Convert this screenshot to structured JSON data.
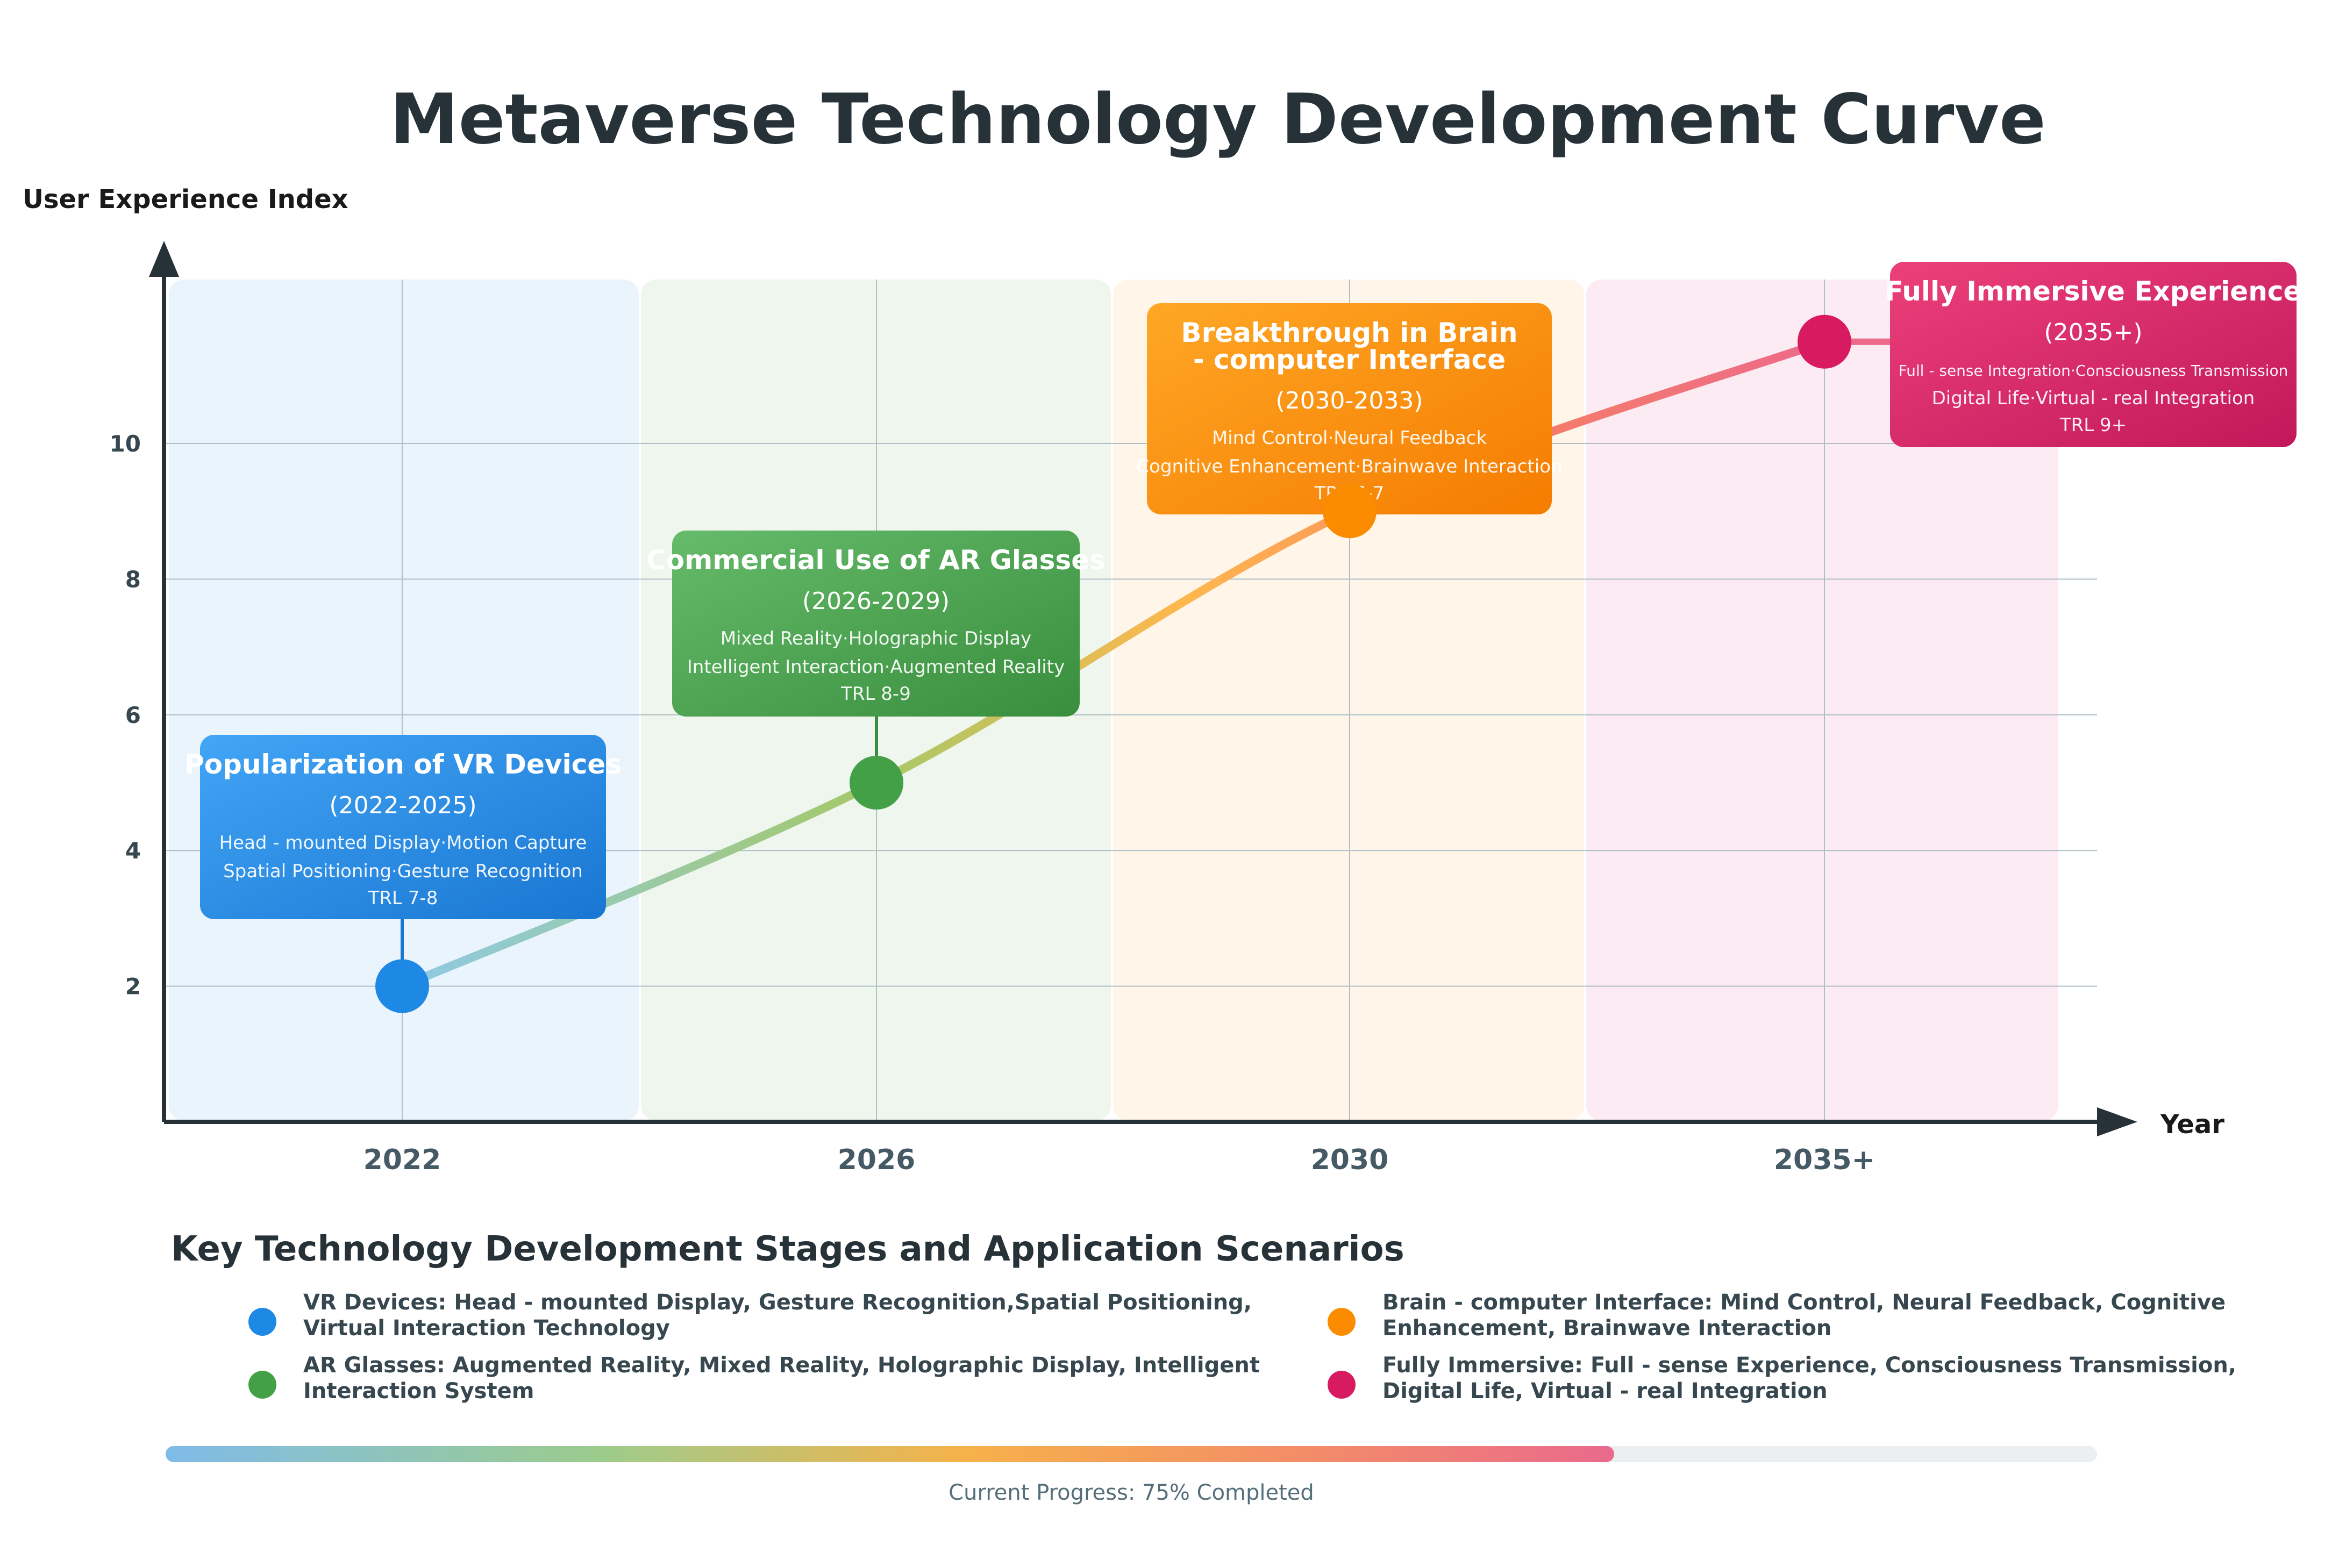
{
  "chart_data": {
    "type": "line",
    "title": "Metaverse Technology Development Curve",
    "ylabel": "User Experience Index",
    "xlabel": "Year",
    "categories": [
      "2022",
      "2026",
      "2030",
      "2035+"
    ],
    "yticks": [
      2,
      4,
      6,
      8,
      10
    ],
    "ylim": [
      0,
      12.4
    ],
    "grid": true,
    "milestones": [
      {
        "x": "2022",
        "value": 2,
        "color": "#1e88e5"
      },
      {
        "x": "2026",
        "value": 5,
        "color": "#43a047"
      },
      {
        "x": "2030",
        "value": 9,
        "color": "#fb8c00"
      },
      {
        "x": "2035+",
        "value": 11.5,
        "color": "#d81b60"
      }
    ],
    "stages": [
      {
        "title": "Popularization of VR Devices",
        "years": "(2022-2025)",
        "lines": [
          "Head - mounted Display·Motion Capture",
          "Spatial Positioning·Gesture Recognition",
          "TRL 7-8"
        ],
        "color_from": "#42a5f5",
        "color_to": "#1976d2",
        "band": "#eaf4fd"
      },
      {
        "title": "Commercial Use of AR Glasses",
        "years": "(2026-2029)",
        "lines": [
          "Mixed Reality·Holographic Display",
          "Intelligent Interaction·Augmented Reality",
          "TRL 8-9"
        ],
        "color_from": "#66bb6a",
        "color_to": "#388e3c",
        "band": "#eef6ee"
      },
      {
        "title_lines": [
          "Breakthrough in Brain",
          "- computer Interface"
        ],
        "years": "(2030-2033)",
        "lines": [
          "Mind Control·Neural Feedback",
          "Cognitive Enhancement·Brainwave Interaction",
          "TRL 6-7"
        ],
        "color_from": "#ffa726",
        "color_to": "#f57c00",
        "band": "#fff6e9"
      },
      {
        "title": "Fully Immersive Experience",
        "years": "(2035+)",
        "lines": [
          "Full - sense Integration·Consciousness Transmission",
          "Digital Life·Virtual - real Integration",
          "TRL 9+"
        ],
        "color_from": "#ec407a",
        "color_to": "#c2185b",
        "band": "#fcebf2"
      }
    ]
  },
  "legend": {
    "title": "Key Technology Development Stages and Application Scenarios",
    "items": [
      {
        "color": "#1e88e5",
        "lines": [
          "VR Devices: Head - mounted Display, Gesture Recognition,Spatial Positioning,",
          "Virtual Interaction Technology"
        ]
      },
      {
        "color": "#43a047",
        "lines": [
          "AR Glasses: Augmented Reality, Mixed Reality, Holographic Display, Intelligent",
          "Interaction System"
        ]
      },
      {
        "color": "#fb8c00",
        "lines": [
          "Brain - computer Interface: Mind Control, Neural Feedback, Cognitive",
          "Enhancement, Brainwave Interaction"
        ]
      },
      {
        "color": "#d81b60",
        "lines": [
          "Fully Immersive: Full - sense Experience, Consciousness Transmission,",
          "Digital Life, Virtual - real Integration"
        ]
      }
    ]
  },
  "progress": {
    "fraction": 0.75,
    "label": "Current Progress: 75% Completed"
  }
}
